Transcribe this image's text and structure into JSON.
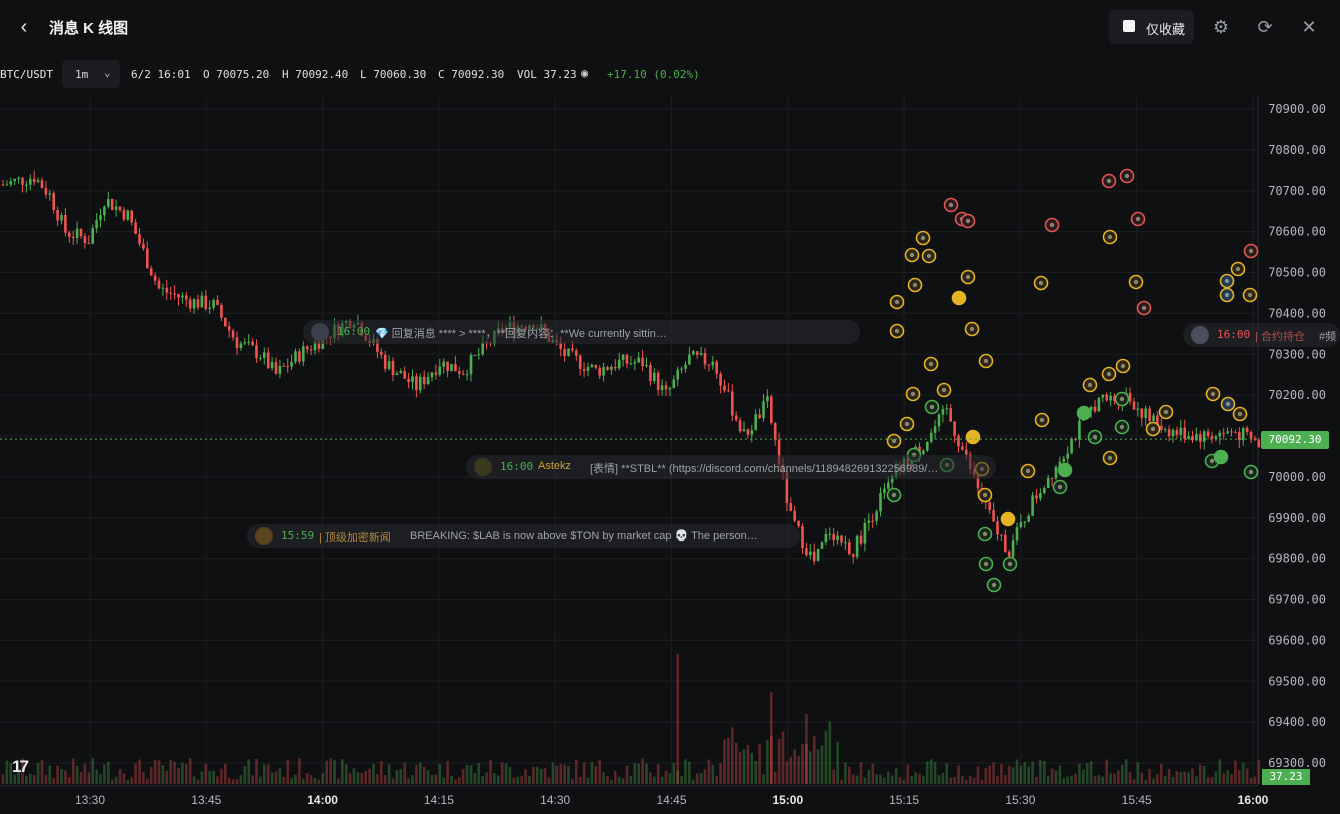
{
  "header": {
    "title": "消息 K 线图",
    "favorites_label": "仅收藏"
  },
  "info": {
    "symbol": "BTC/USDT",
    "interval": "1m",
    "date": "6/2 16:01",
    "open": "O 70075.20",
    "high": "H 70092.40",
    "low": "L 70060.30",
    "close": "C 70092.30",
    "volume": "VOL 37.23",
    "change": "+17.10 (0.02%)"
  },
  "colors": {
    "up": "#4caf50",
    "down": "#ef5350",
    "gold": "#e6b325",
    "bg": "#0f1012"
  },
  "current_price": "70092.30",
  "current_volume": "37.23",
  "news": [
    {
      "time": "16:00",
      "text": "💎 回复消息 **** > ****，**回复内容：**We currently sittin…"
    },
    {
      "time": "16:00",
      "author": "Astekz",
      "text": "[表情] **STBL** (https://discord.com/channels/118948269132256989/…"
    },
    {
      "time": "15:59",
      "author": "| 顶级加密新闻",
      "text": "BREAKING: $LAB is now above $TON by market cap 💀 The person…"
    },
    {
      "time": "16:00",
      "author": "| 合约持仓",
      "text": "#频"
    }
  ],
  "chart_data": {
    "type": "candlestick",
    "y_ticks": [
      "70900.00",
      "70800.00",
      "70700.00",
      "70600.00",
      "70500.00",
      "70400.00",
      "70300.00",
      "70200.00",
      "70100.00",
      "70000.00",
      "69900.00",
      "69800.00",
      "69700.00",
      "69600.00",
      "69500.00",
      "69400.00",
      "69300.00"
    ],
    "x_ticks": [
      "13:30",
      "13:45",
      "14:00",
      "14:15",
      "14:30",
      "14:45",
      "15:00",
      "15:15",
      "15:30",
      "15:45",
      "16:00"
    ],
    "ylim": [
      69250,
      70950
    ],
    "waypoints": [
      [
        0,
        70715
      ],
      [
        8,
        70735
      ],
      [
        12,
        70690
      ],
      [
        16,
        70600
      ],
      [
        22,
        70580
      ],
      [
        26,
        70680
      ],
      [
        32,
        70640
      ],
      [
        40,
        70460
      ],
      [
        48,
        70430
      ],
      [
        54,
        70420
      ],
      [
        60,
        70330
      ],
      [
        66,
        70300
      ],
      [
        70,
        70250
      ],
      [
        76,
        70300
      ],
      [
        82,
        70340
      ],
      [
        90,
        70390
      ],
      [
        98,
        70280
      ],
      [
        106,
        70220
      ],
      [
        112,
        70280
      ],
      [
        118,
        70260
      ],
      [
        128,
        70360
      ],
      [
        136,
        70380
      ],
      [
        144,
        70300
      ],
      [
        152,
        70260
      ],
      [
        158,
        70280
      ],
      [
        164,
        70280
      ],
      [
        170,
        70200
      ],
      [
        176,
        70290
      ],
      [
        182,
        70280
      ],
      [
        190,
        70100
      ],
      [
        196,
        70180
      ],
      [
        202,
        69900
      ],
      [
        208,
        69790
      ],
      [
        212,
        69870
      ],
      [
        218,
        69820
      ],
      [
        224,
        69930
      ],
      [
        230,
        70020
      ],
      [
        236,
        70080
      ],
      [
        242,
        70160
      ],
      [
        248,
        70020
      ],
      [
        254,
        69880
      ],
      [
        258,
        69820
      ],
      [
        264,
        69940
      ],
      [
        272,
        70060
      ],
      [
        280,
        70180
      ],
      [
        288,
        70200
      ],
      [
        294,
        70140
      ],
      [
        300,
        70110
      ],
      [
        308,
        70100
      ],
      [
        316,
        70110
      ],
      [
        322,
        70080
      ]
    ]
  }
}
